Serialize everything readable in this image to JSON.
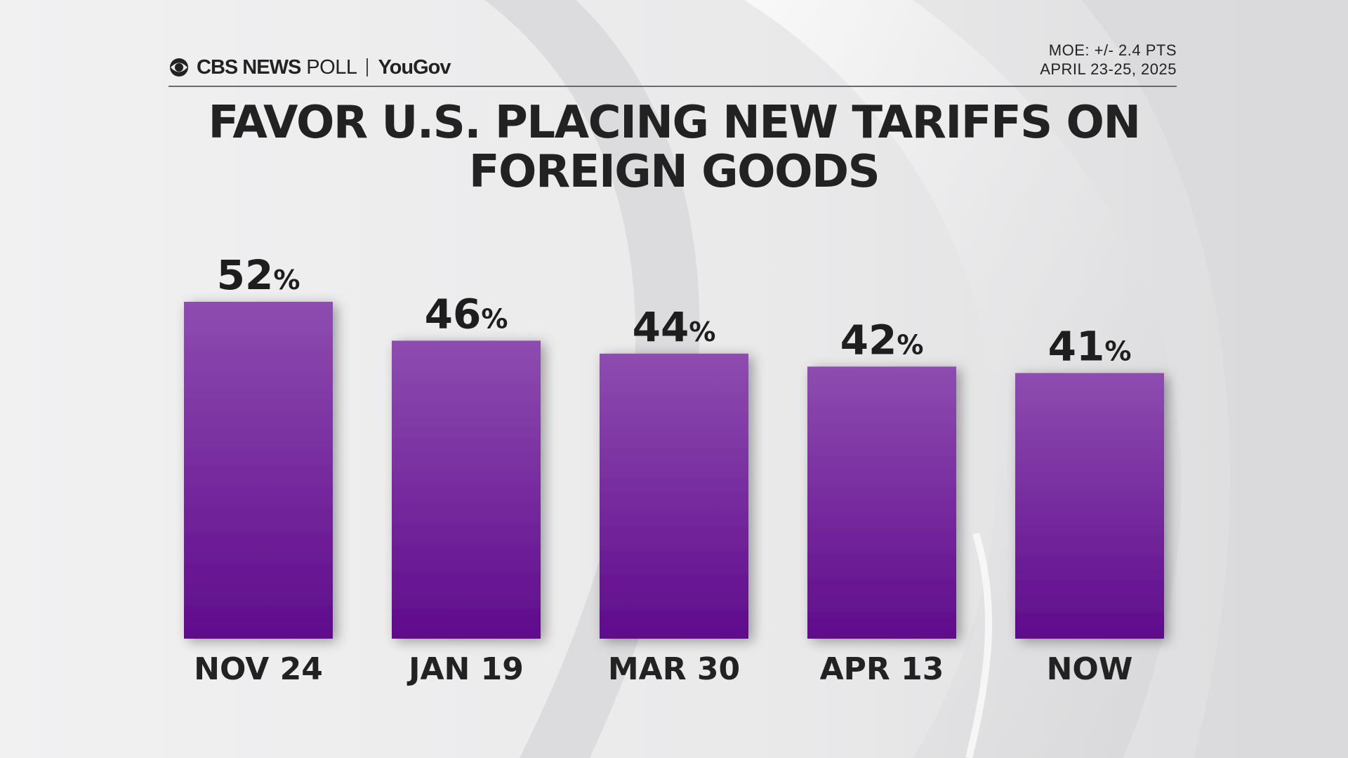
{
  "header": {
    "brand_cbs": "CBS NEWS",
    "brand_poll": "POLL",
    "brand_partner": "YouGov",
    "moe": "MOE: +/- 2.4 PTS",
    "dates": "APRIL 23-25, 2025"
  },
  "title_lines": [
    "FAVOR U.S. PLACING NEW TARIFFS ON",
    "FOREIGN GOODS"
  ],
  "colors": {
    "bar_top": "#8e4cb0",
    "bar_bottom": "#5f0b8c",
    "text": "#222222"
  },
  "icons": {
    "cbs_logo": "cbs-eye-icon"
  },
  "chart_data": {
    "type": "bar",
    "title": "FAVOR U.S. PLACING NEW TARIFFS ON FOREIGN GOODS",
    "categories": [
      "NOV 24",
      "JAN 19",
      "MAR 30",
      "APR 13",
      "NOW"
    ],
    "values": [
      52,
      46,
      44,
      42,
      41
    ],
    "value_suffix": "%",
    "xlabel": "",
    "ylabel": "",
    "ylim": [
      0,
      52
    ],
    "grid": false,
    "legend": "none"
  }
}
